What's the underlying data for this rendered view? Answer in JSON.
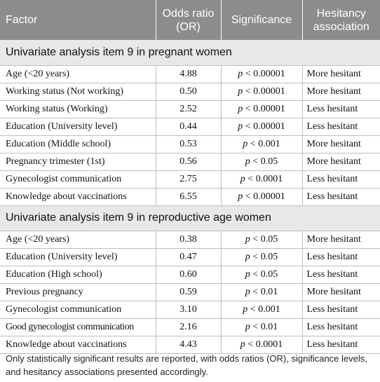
{
  "table": {
    "headers": [
      "Factor",
      "Odds ratio (OR)",
      "Significance",
      "Hesitancy association"
    ],
    "sections": [
      {
        "title": "Univariate analysis item 9 in pregnant women",
        "rows": [
          {
            "factor": "Age (<20 years)",
            "or": "4.88",
            "sig": "p < 0.00001",
            "assoc": "More hesitant"
          },
          {
            "factor": "Working status (Not working)",
            "or": "0.50",
            "sig": "p < 0.00001",
            "assoc": "More hesitant"
          },
          {
            "factor": "Working status (Working)",
            "or": "2.52",
            "sig": "p < 0.00001",
            "assoc": "Less hesitant"
          },
          {
            "factor": "Education (University level)",
            "or": "0.44",
            "sig": "p < 0.00001",
            "assoc": "Less hesitant"
          },
          {
            "factor": "Education (Middle school)",
            "or": "0.53",
            "sig": "p < 0.001",
            "assoc": "More hesitant"
          },
          {
            "factor": "Pregnancy trimester (1st)",
            "or": "0.56",
            "sig": "p < 0.05",
            "assoc": "More hesitant"
          },
          {
            "factor": "Gynecologist communication",
            "or": "2.75",
            "sig": "p < 0.0001",
            "assoc": "Less hesitant"
          },
          {
            "factor": "Knowledge about vaccinations",
            "or": "6.55",
            "sig": "p < 0.00001",
            "assoc": "Less hesitant"
          }
        ]
      },
      {
        "title": "Univariate analysis item 9 in reproductive age women",
        "rows": [
          {
            "factor": "Age (<20 years)",
            "or": "0.38",
            "sig": "p < 0.05",
            "assoc": "More hesitant"
          },
          {
            "factor": "Education (University level)",
            "or": "0.47",
            "sig": "p < 0.05",
            "assoc": "Less hesitant"
          },
          {
            "factor": "Education (High school)",
            "or": "0.60",
            "sig": "p < 0.05",
            "assoc": "Less hesitant"
          },
          {
            "factor": "Previous pregnancy",
            "or": "0.59",
            "sig": "p < 0.01",
            "assoc": "More hesitant"
          },
          {
            "factor": "Gynecologist communication",
            "or": "3.10",
            "sig": "p < 0.001",
            "assoc": "Less hesitant"
          },
          {
            "factor": "Good gynecologist communication",
            "or": "2.16",
            "sig": "p < 0.01",
            "assoc": "Less hesitant"
          },
          {
            "factor": "Knowledge about vaccinations",
            "or": "4.43",
            "sig": "p < 0.0001",
            "assoc": "Less hesitant"
          }
        ]
      }
    ]
  },
  "footnote": "Only statistically significant results are reported, with odds ratios (OR), significance levels, and hesitancy associations presented accordingly.",
  "colors": {
    "header_bg": "#8c8c8c",
    "header_text": "#ffffff",
    "section_bg": "#e8e8e8",
    "rule": "#bdbdbd"
  }
}
